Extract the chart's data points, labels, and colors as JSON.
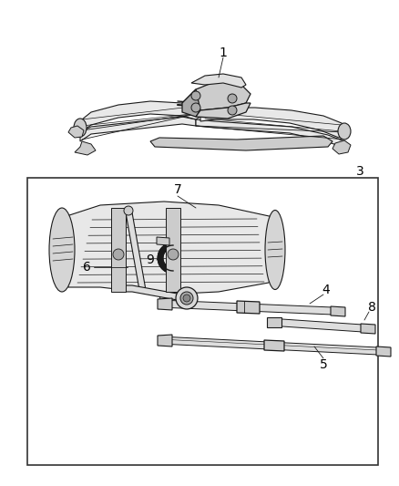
{
  "bg_color": "#ffffff",
  "line_color": "#1a1a1a",
  "box_color": "#333333",
  "label_color": "#000000",
  "fig_width": 4.38,
  "fig_height": 5.33,
  "dpi": 100,
  "label_fontsize": 9.5,
  "lw_main": 0.8,
  "lw_thin": 0.5,
  "lw_thick": 1.2,
  "gray_light": "#e8e8e8",
  "gray_mid": "#cccccc",
  "gray_dark": "#aaaaaa",
  "gray_darker": "#888888"
}
